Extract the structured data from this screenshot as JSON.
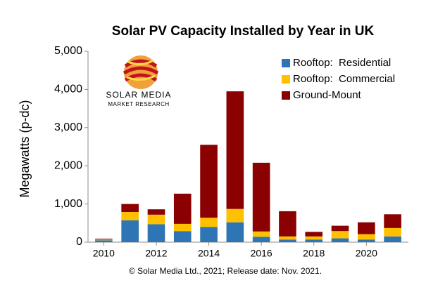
{
  "chart_data": {
    "type": "stacked_bar",
    "title": "Solar PV Capacity Installed by Year in UK",
    "y_label": "Megawatts (p-dc)",
    "caption": "© Solar Media Ltd., 2021; Release date: Nov. 2021.",
    "logo_text": [
      "SOLAR MEDIA",
      "MARKET RESEARCH"
    ],
    "x": [
      2010,
      2011,
      2012,
      2013,
      2014,
      2015,
      2016,
      2017,
      2018,
      2019,
      2020,
      2021
    ],
    "xlim": [
      2009.4,
      2021.6
    ],
    "xticks": [
      2010,
      2012,
      2014,
      2016,
      2018,
      2020
    ],
    "ylim": [
      0,
      5000
    ],
    "yticks": [
      0,
      {
        "value": 1000,
        "label": "1,000"
      },
      {
        "value": 2000,
        "label": "2,000"
      },
      {
        "value": 3000,
        "label": "3,000"
      },
      {
        "value": 4000,
        "label": "4,000"
      },
      {
        "value": 5000,
        "label": "5,000"
      }
    ],
    "grid": false,
    "legend": "top-right",
    "series": [
      {
        "name": "Rooftop:  Residential",
        "color": "#2e75b6",
        "values": [
          50,
          570,
          470,
          290,
          400,
          520,
          140,
          70,
          70,
          100,
          70,
          150
        ]
      },
      {
        "name": "Rooftop:  Commercial",
        "color": "#ffc000",
        "values": [
          20,
          220,
          250,
          190,
          240,
          350,
          140,
          80,
          80,
          190,
          140,
          220
        ]
      },
      {
        "name": "Ground-Mount",
        "color": "#8b0000",
        "values": [
          20,
          210,
          140,
          790,
          1910,
          3080,
          1800,
          660,
          120,
          140,
          310,
          360
        ]
      }
    ]
  }
}
